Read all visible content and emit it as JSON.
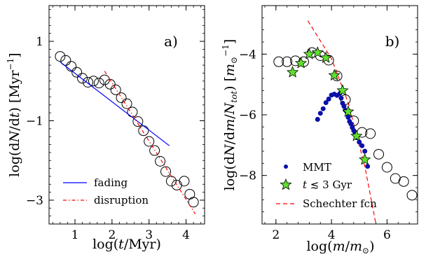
{
  "chart_data": [
    {
      "type": "scatter",
      "panel_label": "a)",
      "xlabel": "log(t/Myr)",
      "ylabel": "log(dN/dt) [Myr⁻¹]",
      "xlim": [
        0.3,
        4.5
      ],
      "ylim": [
        -3.6,
        1.9
      ],
      "xticks": [
        1,
        2,
        3,
        4
      ],
      "yticks": [
        1,
        -1,
        -3
      ],
      "series": [
        {
          "marker": "open-circle",
          "points": [
            [
              0.6,
              0.62
            ],
            [
              0.75,
              0.52
            ],
            [
              0.9,
              0.37
            ],
            [
              1.05,
              0.22
            ],
            [
              1.2,
              0.07
            ],
            [
              1.35,
              -0.03
            ],
            [
              1.5,
              0.0
            ],
            [
              1.65,
              -0.05
            ],
            [
              1.8,
              0.03
            ],
            [
              1.95,
              -0.08
            ],
            [
              2.1,
              -0.22
            ],
            [
              2.25,
              -0.42
            ],
            [
              2.4,
              -0.57
            ],
            [
              2.55,
              -0.78
            ],
            [
              2.7,
              -1.02
            ],
            [
              2.85,
              -1.25
            ],
            [
              3.0,
              -1.52
            ],
            [
              3.15,
              -1.75
            ],
            [
              3.3,
              -2.02
            ],
            [
              3.45,
              -2.28
            ],
            [
              3.6,
              -2.52
            ],
            [
              3.75,
              -2.62
            ],
            [
              3.95,
              -2.52
            ],
            [
              4.1,
              -2.85
            ],
            [
              4.2,
              -3.05
            ]
          ]
        },
        {
          "name": "fading",
          "style": "solid",
          "color": "#0000ff",
          "line": [
            [
              0.6,
              0.48
            ],
            [
              3.55,
              -1.63
            ]
          ]
        },
        {
          "name": "disruption",
          "style": "dash-dot",
          "color": "#ff0000",
          "line": [
            [
              1.8,
              0.25
            ],
            [
              4.25,
              -3.35
            ]
          ]
        }
      ],
      "legend": "bottom-left"
    },
    {
      "type": "scatter",
      "panel_label": "b)",
      "xlabel": "log(m/m⊙)",
      "ylabel": "log(dN/dm/N_tot) [m⊙⁻¹]",
      "xlim": [
        1.5,
        7.1
      ],
      "ylim": [
        -9.6,
        -2.4
      ],
      "xticks": [
        2,
        4,
        6
      ],
      "yticks": [
        -4,
        -6,
        -8
      ],
      "series": [
        {
          "marker": "open-circle",
          "points": [
            [
              2.1,
              -4.25
            ],
            [
              2.4,
              -4.25
            ],
            [
              2.7,
              -4.22
            ],
            [
              3.0,
              -4.25
            ],
            [
              3.3,
              -3.95
            ],
            [
              3.6,
              -4.05
            ],
            [
              3.9,
              -4.2
            ],
            [
              4.2,
              -4.72
            ],
            [
              4.5,
              -5.5
            ],
            [
              4.8,
              -6.2
            ],
            [
              5.1,
              -6.58
            ],
            [
              5.4,
              -6.62
            ],
            [
              5.7,
              -7.3
            ],
            [
              6.0,
              -7.73
            ],
            [
              6.3,
              -8.1
            ],
            [
              6.6,
              -8.2
            ],
            [
              6.9,
              -8.65
            ]
          ]
        },
        {
          "name": "MMT",
          "marker": "blue-dot",
          "points": [
            [
              3.5,
              -6.15
            ],
            [
              3.6,
              -5.95
            ],
            [
              3.7,
              -5.8
            ],
            [
              3.8,
              -5.6
            ],
            [
              3.9,
              -5.48
            ],
            [
              4.0,
              -5.35
            ],
            [
              4.1,
              -5.32
            ],
            [
              4.2,
              -5.36
            ],
            [
              4.3,
              -5.3
            ],
            [
              4.35,
              -5.45
            ],
            [
              4.4,
              -5.62
            ],
            [
              4.45,
              -5.72
            ],
            [
              4.5,
              -5.85
            ],
            [
              4.55,
              -5.9
            ],
            [
              4.6,
              -6.08
            ],
            [
              4.65,
              -6.22
            ],
            [
              4.7,
              -6.3
            ],
            [
              4.75,
              -6.42
            ],
            [
              4.8,
              -6.52
            ],
            [
              4.85,
              -6.62
            ],
            [
              4.9,
              -6.75
            ],
            [
              5.0,
              -6.9
            ],
            [
              5.1,
              -7.02
            ],
            [
              5.2,
              -7.2
            ],
            [
              5.3,
              -7.7
            ]
          ]
        },
        {
          "name": "t ≲ 3 Gyr",
          "marker": "green-star",
          "points": [
            [
              2.6,
              -4.6
            ],
            [
              2.9,
              -4.3
            ],
            [
              3.2,
              -4.0
            ],
            [
              3.5,
              -3.95
            ],
            [
              3.8,
              -4.12
            ],
            [
              4.1,
              -4.7
            ],
            [
              4.4,
              -5.2
            ],
            [
              4.6,
              -5.9
            ],
            [
              4.9,
              -6.7
            ],
            [
              5.2,
              -7.48
            ]
          ]
        },
        {
          "name": "Schechter fcn",
          "style": "dashed",
          "color": "#ff0000",
          "line": [
            [
              3.15,
              -2.9
            ],
            [
              4.0,
              -4.15
            ],
            [
              4.6,
              -5.6
            ],
            [
              5.2,
              -7.7
            ],
            [
              5.6,
              -9.6
            ]
          ]
        }
      ],
      "legend": "bottom-left"
    }
  ]
}
